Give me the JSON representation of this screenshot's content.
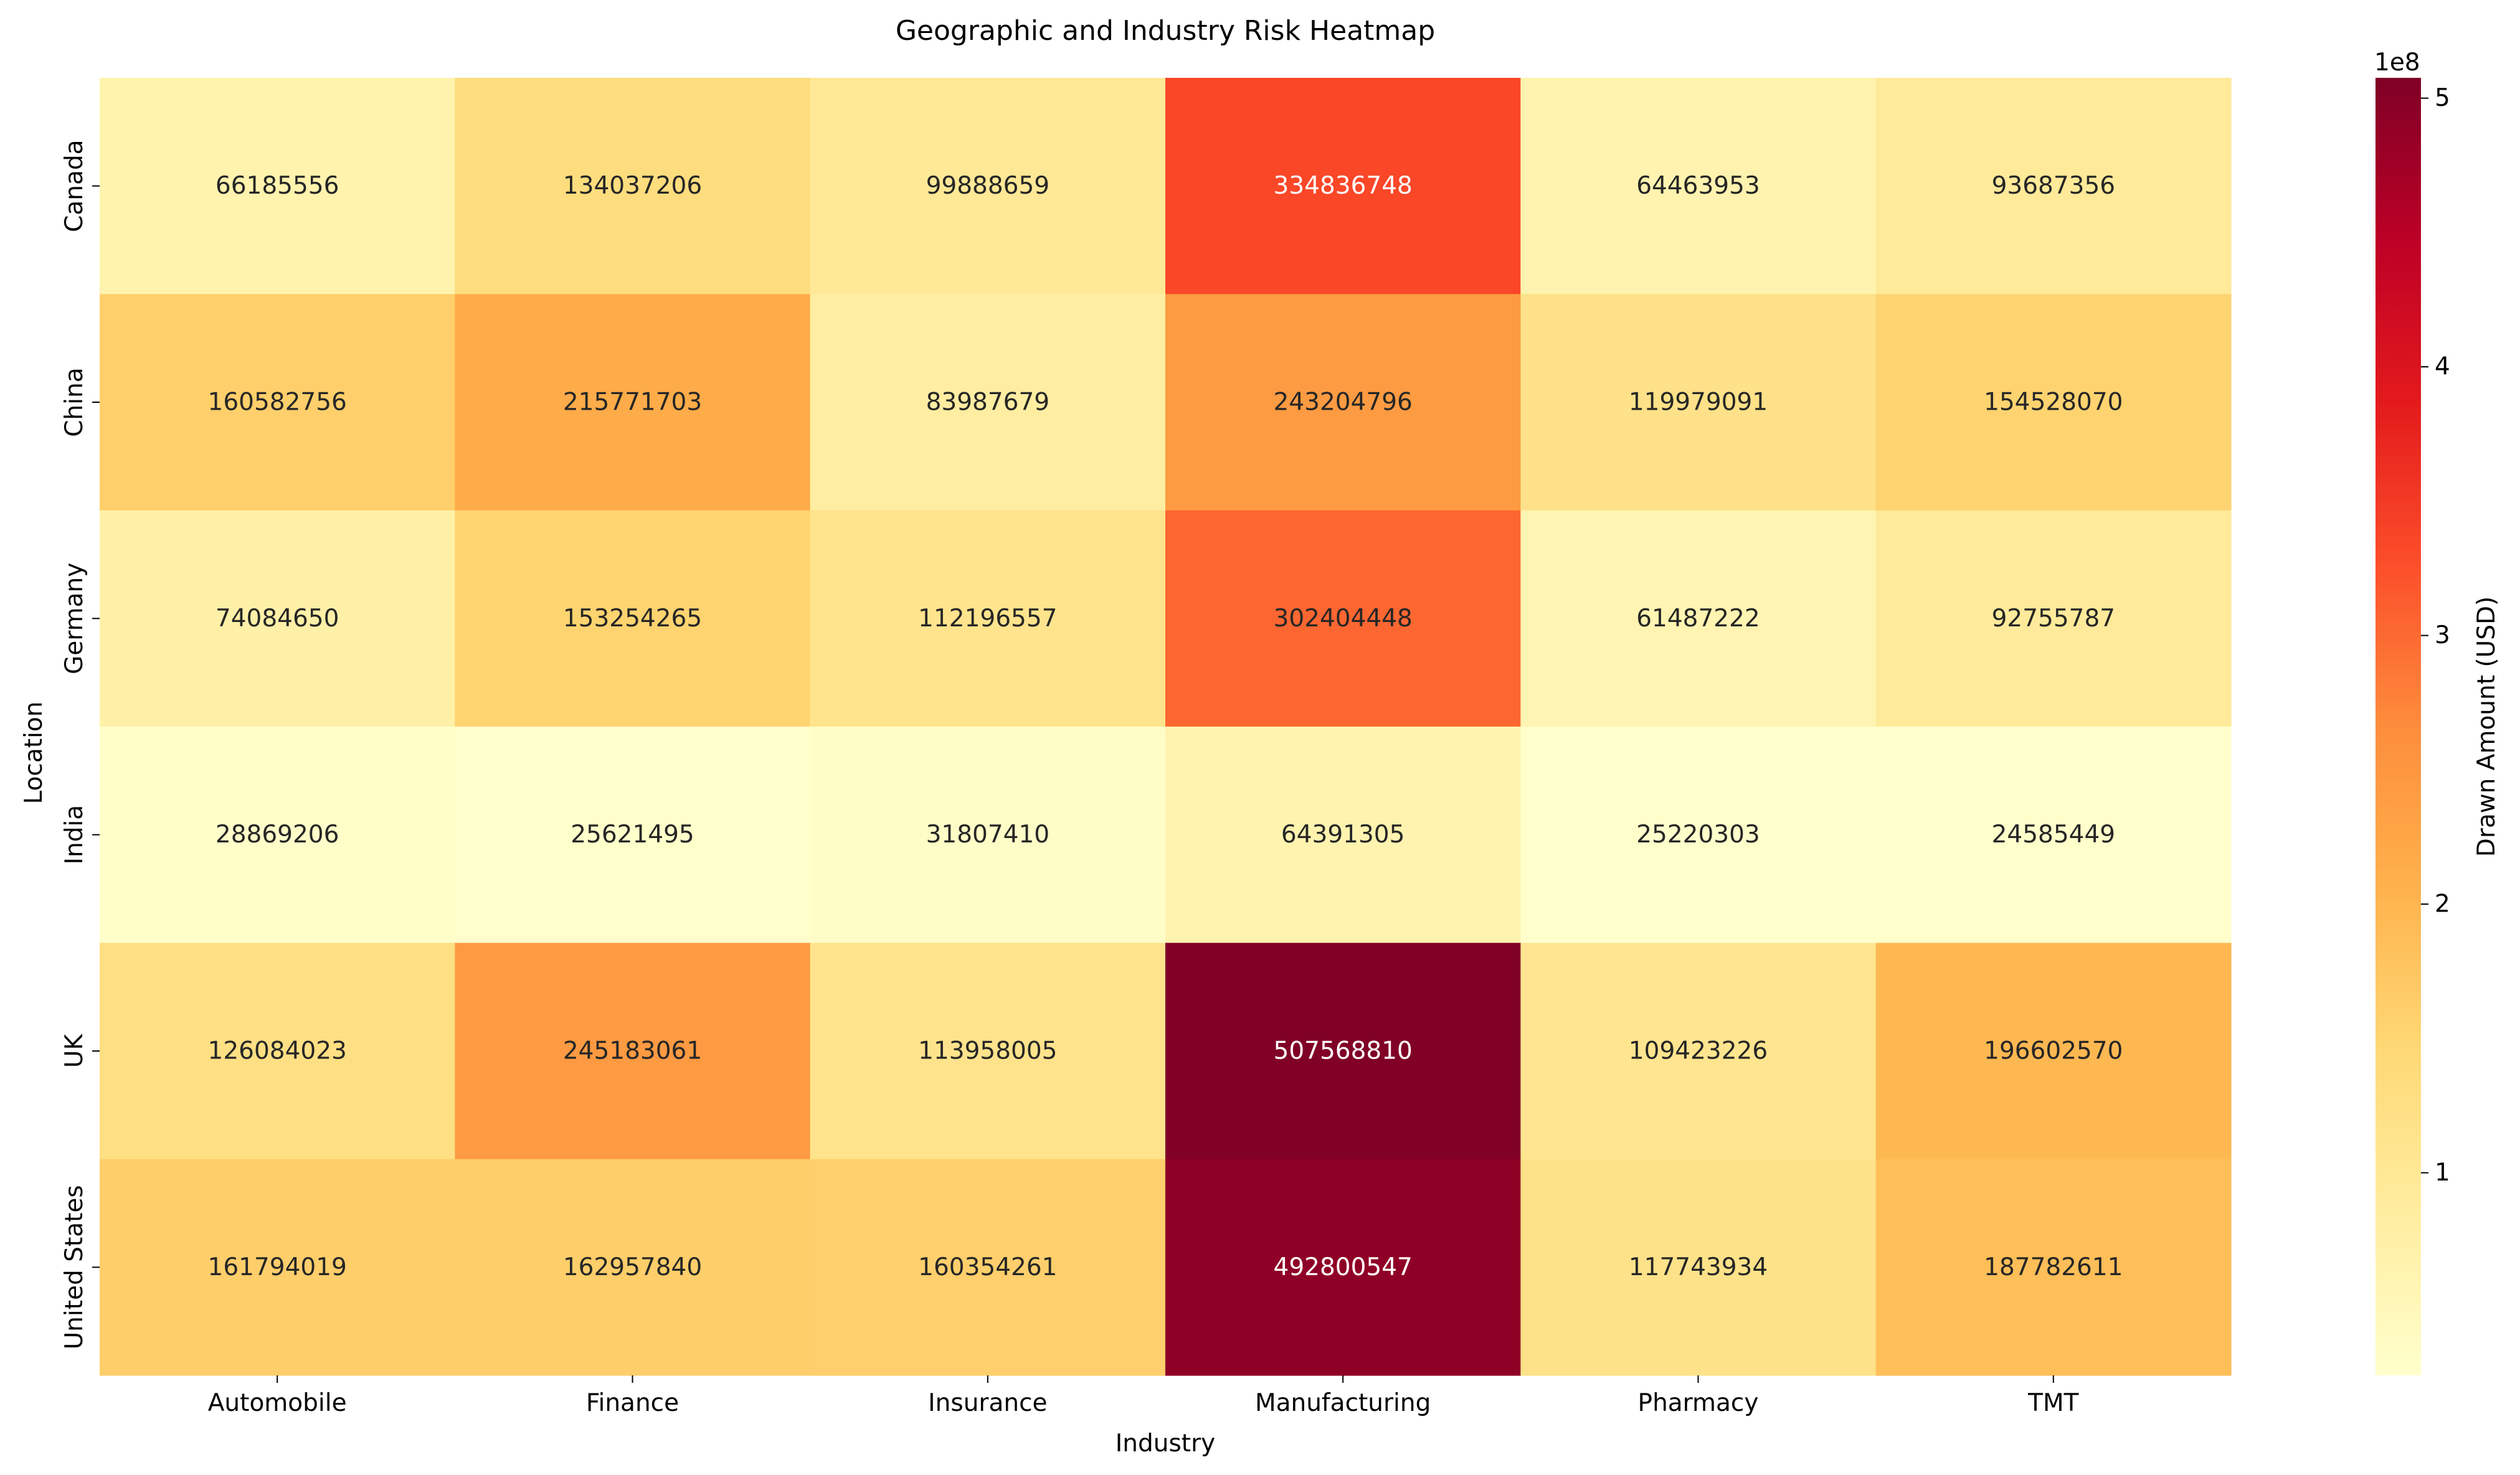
{
  "chart_data": {
    "type": "heatmap",
    "title": "Geographic and Industry Risk Heatmap",
    "xlabel": "Industry",
    "ylabel": "Location",
    "x_categories": [
      "Automobile",
      "Finance",
      "Insurance",
      "Manufacturing",
      "Pharmacy",
      "TMT"
    ],
    "y_categories": [
      "Canada",
      "China",
      "Germany",
      "India",
      "UK",
      "United States"
    ],
    "values": [
      [
        66185556,
        134037206,
        99888659,
        334836748,
        64463953,
        93687356
      ],
      [
        160582756,
        215771703,
        83987679,
        243204796,
        119979091,
        154528070
      ],
      [
        74084650,
        153254265,
        112196557,
        302404448,
        61487222,
        92755787
      ],
      [
        28869206,
        25621495,
        31807410,
        64391305,
        25220303,
        24585449
      ],
      [
        126084023,
        245183061,
        113958005,
        507568810,
        109423226,
        196602570
      ],
      [
        161794019,
        162957840,
        160354261,
        492800547,
        117743934,
        187782611
      ]
    ],
    "colormap": "YlOrRd",
    "colorbar": {
      "label": "Drawn Amount (USD)",
      "offset_text": "1e8",
      "ticks": [
        1,
        2,
        3,
        4,
        5
      ],
      "tick_multiplier": 100000000,
      "range": [
        24585449,
        507568810
      ]
    },
    "grid": false,
    "legend": "colorbar-right"
  }
}
